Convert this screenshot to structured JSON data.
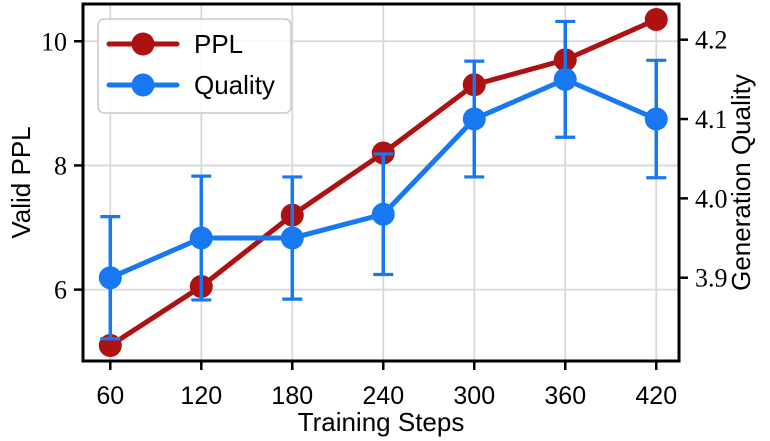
{
  "figure": {
    "background": "#ffffff",
    "frame_color": "#000000",
    "grid_color": "#d8d8d8"
  },
  "chart_data": {
    "type": "line",
    "title": "",
    "x_axis": {
      "label": "Training Steps",
      "tick_values": [
        60,
        120,
        180,
        240,
        300,
        360,
        420
      ],
      "tick_labels": [
        "60",
        "120",
        "180",
        "240",
        "300",
        "360",
        "420"
      ],
      "lim": [
        42,
        435
      ]
    },
    "left_axis": {
      "label": "Valid PPL",
      "label_color": "#000000",
      "tick_values": [
        6,
        8,
        10
      ],
      "tick_labels": [
        "6",
        "8",
        "10"
      ],
      "lim": [
        4.85,
        10.6
      ]
    },
    "right_axis": {
      "label": "Generation Quality",
      "label_color": "#1778f2",
      "tick_values": [
        3.9,
        4.0,
        4.1,
        4.2
      ],
      "tick_labels": [
        "3.9",
        "4.0",
        "4.1",
        "4.2"
      ],
      "lim": [
        3.795,
        4.245
      ]
    },
    "x": [
      60,
      120,
      180,
      240,
      300,
      360,
      420
    ],
    "series": [
      {
        "name": "PPL",
        "axis": "left",
        "color": "#ae1111",
        "marker": "circle",
        "values": [
          5.1,
          6.05,
          7.2,
          8.2,
          9.3,
          9.7,
          10.35
        ]
      },
      {
        "name": "Quality",
        "axis": "right",
        "color": "#1778f2",
        "marker": "circle",
        "values": [
          3.9,
          3.95,
          3.95,
          3.98,
          4.1,
          4.15,
          4.1
        ],
        "errors": [
          0.077,
          0.078,
          0.077,
          0.076,
          0.073,
          0.073,
          0.074
        ]
      }
    ],
    "legend": {
      "position": "upper-left",
      "entries": [
        "PPL",
        "Quality"
      ]
    },
    "grid": "horizontal-left-ticks-and-vertical-x-ticks",
    "legend_border_color": "#cccccc"
  }
}
